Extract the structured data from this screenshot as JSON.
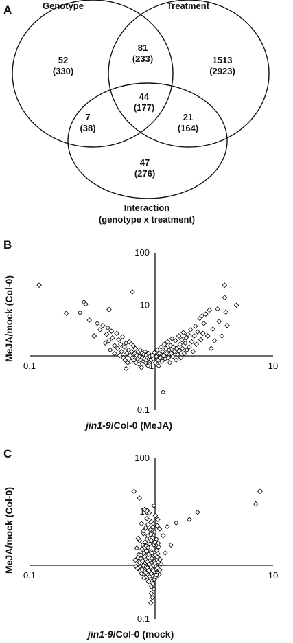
{
  "panel_a": {
    "label": "A",
    "sets": {
      "genotype": "Genotype",
      "treatment": "Treatment",
      "interaction_line1": "Interaction",
      "interaction_line2": "(genotype x treatment)"
    },
    "regions": {
      "genotype_only": {
        "count": "52",
        "paren": "(330)"
      },
      "genotype_treatment": {
        "count": "81",
        "paren": "(233)"
      },
      "treatment_only": {
        "count": "1513",
        "paren": "(2923)"
      },
      "center": {
        "count": "44",
        "paren": "(177)"
      },
      "genotype_interaction": {
        "count": "7",
        "paren": "(38)"
      },
      "treatment_interaction": {
        "count": "21",
        "paren": "(164)"
      },
      "interaction_only": {
        "count": "47",
        "paren": "(276)"
      }
    }
  },
  "panel_b": {
    "label": "B",
    "ylabel": "MeJA/mock (Col-0)",
    "xlabel_italic": "jin1-9",
    "xlabel_rest": "/Col-0 (MeJA)"
  },
  "panel_c": {
    "label": "C",
    "ylabel": "MeJA/mock (Col-0)",
    "xlabel_italic": "jin1-9",
    "xlabel_rest": "/Col-0 (mock)"
  },
  "chart_data": [
    {
      "type": "scatter",
      "xscale": "log",
      "yscale": "log",
      "xlim": [
        0.1,
        10
      ],
      "ylim": [
        0.1,
        100
      ],
      "axis_cross": [
        1,
        1
      ],
      "xticks": [
        "0.1",
        "1",
        "10"
      ],
      "yticks": [
        "100",
        "10",
        "0.1"
      ],
      "marker": "diamond-open",
      "points": [
        [
          0.12,
          24
        ],
        [
          0.2,
          7
        ],
        [
          0.26,
          7.2
        ],
        [
          0.28,
          11.5
        ],
        [
          0.29,
          10.5
        ],
        [
          0.31,
          5.2
        ],
        [
          0.34,
          2.6
        ],
        [
          0.36,
          4.5
        ],
        [
          0.38,
          3.4
        ],
        [
          0.4,
          4.1
        ],
        [
          0.42,
          1.9
        ],
        [
          0.43,
          2.8
        ],
        [
          0.44,
          3.7
        ],
        [
          0.45,
          2.1
        ],
        [
          0.45,
          8.3
        ],
        [
          0.46,
          1.4
        ],
        [
          0.47,
          3.2
        ],
        [
          0.48,
          2.4
        ],
        [
          0.5,
          1.7
        ],
        [
          0.5,
          1.2
        ],
        [
          0.52,
          2.9
        ],
        [
          0.53,
          1.5
        ],
        [
          0.54,
          2.2
        ],
        [
          0.55,
          1.1
        ],
        [
          0.56,
          1.8
        ],
        [
          0.57,
          1.3
        ],
        [
          0.58,
          2.5
        ],
        [
          0.59,
          1.0
        ],
        [
          0.6,
          1.6
        ],
        [
          0.61,
          0.9
        ],
        [
          0.62,
          1.9
        ],
        [
          0.63,
          1.2
        ],
        [
          0.64,
          0.8
        ],
        [
          0.65,
          1.4
        ],
        [
          0.66,
          2.0
        ],
        [
          0.67,
          1.1
        ],
        [
          0.68,
          0.85
        ],
        [
          0.69,
          1.3
        ],
        [
          0.7,
          18
        ],
        [
          0.7,
          1.0
        ],
        [
          0.71,
          1.7
        ],
        [
          0.72,
          0.9
        ],
        [
          0.73,
          1.2
        ],
        [
          0.74,
          1.5
        ],
        [
          0.75,
          0.8
        ],
        [
          0.76,
          1.1
        ],
        [
          0.77,
          0.95
        ],
        [
          0.78,
          1.3
        ],
        [
          0.79,
          0.75
        ],
        [
          0.8,
          1.05
        ],
        [
          0.81,
          1.4
        ],
        [
          0.82,
          0.9
        ],
        [
          0.83,
          0.65
        ],
        [
          0.84,
          1.2
        ],
        [
          0.85,
          1.0
        ],
        [
          0.86,
          0.85
        ],
        [
          0.87,
          1.15
        ],
        [
          0.88,
          0.95
        ],
        [
          0.89,
          1.3
        ],
        [
          0.9,
          0.8
        ],
        [
          0.91,
          1.1
        ],
        [
          0.92,
          0.9
        ],
        [
          0.93,
          1.0
        ],
        [
          0.94,
          0.7
        ],
        [
          0.95,
          1.2
        ],
        [
          0.96,
          0.95
        ],
        [
          0.97,
          1.05
        ],
        [
          0.98,
          0.85
        ],
        [
          1.0,
          0.9
        ],
        [
          1.02,
          1.1
        ],
        [
          1.04,
          0.95
        ],
        [
          1.06,
          1.25
        ],
        [
          1.08,
          0.8
        ],
        [
          1.1,
          1.05
        ],
        [
          1.12,
          1.4
        ],
        [
          1.14,
          0.9
        ],
        [
          1.16,
          1.2
        ],
        [
          1.18,
          1.0
        ],
        [
          1.2,
          1.6
        ],
        [
          1.22,
          0.85
        ],
        [
          1.24,
          1.3
        ],
        [
          1.26,
          1.1
        ],
        [
          1.28,
          1.8
        ],
        [
          1.3,
          0.95
        ],
        [
          1.32,
          1.5
        ],
        [
          1.34,
          1.2
        ],
        [
          1.36,
          2.0
        ],
        [
          1.38,
          1.0
        ],
        [
          1.4,
          1.4
        ],
        [
          1.42,
          0.8
        ],
        [
          1.44,
          1.7
        ],
        [
          1.46,
          1.2
        ],
        [
          1.48,
          2.3
        ],
        [
          1.5,
          1.05
        ],
        [
          1.52,
          1.6
        ],
        [
          1.55,
          1.3
        ],
        [
          1.58,
          2.1
        ],
        [
          1.6,
          0.9
        ],
        [
          1.62,
          1.5
        ],
        [
          1.65,
          1.15
        ],
        [
          1.68,
          2.6
        ],
        [
          1.7,
          1.35
        ],
        [
          1.72,
          1.8
        ],
        [
          1.75,
          1.0
        ],
        [
          1.78,
          2.2
        ],
        [
          1.8,
          1.5
        ],
        [
          1.83,
          3.0
        ],
        [
          1.86,
          1.2
        ],
        [
          1.9,
          1.9
        ],
        [
          1.93,
          2.4
        ],
        [
          1.96,
          1.4
        ],
        [
          2.0,
          2.8
        ],
        [
          2.05,
          1.6
        ],
        [
          2.1,
          3.4
        ],
        [
          2.15,
          2.0
        ],
        [
          2.2,
          1.3
        ],
        [
          2.25,
          2.6
        ],
        [
          2.3,
          4.0
        ],
        [
          2.35,
          1.8
        ],
        [
          2.4,
          3.1
        ],
        [
          2.5,
          5.6
        ],
        [
          2.55,
          2.2
        ],
        [
          2.6,
          6.2
        ],
        [
          2.65,
          2.9
        ],
        [
          2.7,
          4.5
        ],
        [
          2.8,
          6.8
        ],
        [
          2.9,
          2.6
        ],
        [
          3.0,
          8.1
        ],
        [
          3.1,
          1.5
        ],
        [
          3.2,
          3.5
        ],
        [
          3.3,
          2.1
        ],
        [
          3.5,
          8.5
        ],
        [
          3.6,
          4.9
        ],
        [
          3.8,
          2.6
        ],
        [
          4.0,
          24
        ],
        [
          4.0,
          14
        ],
        [
          4.1,
          7.4
        ],
        [
          4.2,
          4.1
        ],
        [
          5.0,
          10
        ],
        [
          1.25,
          0.22
        ],
        [
          0.62,
          0.62
        ],
        [
          1.15,
          0.7
        ]
      ]
    },
    {
      "type": "scatter",
      "xscale": "log",
      "yscale": "log",
      "xlim": [
        0.1,
        10
      ],
      "ylim": [
        0.1,
        100
      ],
      "axis_cross": [
        1,
        1
      ],
      "xticks": [
        "0.1",
        "1",
        "10"
      ],
      "yticks": [
        "100",
        "10",
        "0.1"
      ],
      "marker": "diamond-open",
      "points": [
        [
          0.72,
          24
        ],
        [
          0.8,
          18
        ],
        [
          1.05,
          13
        ],
        [
          0.88,
          11
        ],
        [
          0.96,
          9.5
        ],
        [
          1.08,
          8.5
        ],
        [
          0.92,
          7.5
        ],
        [
          1.0,
          6.5
        ],
        [
          0.83,
          6
        ],
        [
          1.12,
          5.5
        ],
        [
          0.9,
          5
        ],
        [
          0.98,
          4.6
        ],
        [
          1.06,
          4.2
        ],
        [
          0.86,
          3.9
        ],
        [
          0.94,
          3.6
        ],
        [
          1.02,
          3.3
        ],
        [
          1.1,
          3.1
        ],
        [
          0.8,
          2.9
        ],
        [
          0.89,
          2.7
        ],
        [
          0.97,
          2.5
        ],
        [
          1.05,
          2.4
        ],
        [
          1.15,
          2.2
        ],
        [
          0.76,
          2.1
        ],
        [
          0.84,
          2.0
        ],
        [
          0.92,
          1.9
        ],
        [
          1.0,
          1.8
        ],
        [
          1.08,
          1.75
        ],
        [
          0.87,
          1.65
        ],
        [
          0.95,
          1.6
        ],
        [
          1.03,
          1.5
        ],
        [
          1.12,
          1.45
        ],
        [
          0.78,
          1.4
        ],
        [
          0.82,
          1.35
        ],
        [
          0.9,
          1.3
        ],
        [
          0.98,
          1.25
        ],
        [
          1.06,
          1.2
        ],
        [
          1.14,
          1.15
        ],
        [
          0.8,
          1.12
        ],
        [
          0.88,
          1.08
        ],
        [
          0.96,
          1.05
        ],
        [
          1.04,
          1.0
        ],
        [
          1.1,
          0.97
        ],
        [
          0.75,
          0.95
        ],
        [
          0.85,
          0.92
        ],
        [
          0.93,
          0.9
        ],
        [
          1.01,
          0.87
        ],
        [
          1.09,
          0.84
        ],
        [
          0.81,
          0.81
        ],
        [
          0.89,
          0.79
        ],
        [
          0.97,
          0.77
        ],
        [
          1.05,
          0.74
        ],
        [
          1.13,
          0.72
        ],
        [
          0.86,
          0.69
        ],
        [
          0.94,
          0.67
        ],
        [
          1.02,
          0.64
        ],
        [
          0.9,
          0.6
        ],
        [
          0.98,
          0.57
        ],
        [
          1.06,
          0.54
        ],
        [
          0.95,
          0.5
        ],
        [
          1.03,
          0.46
        ],
        [
          1.0,
          0.4
        ],
        [
          1.05,
          0.36
        ],
        [
          1.0,
          0.3
        ],
        [
          1.02,
          0.25
        ],
        [
          0.99,
          0.2
        ],
        [
          0.91,
          2.3
        ],
        [
          1.11,
          1.9
        ],
        [
          0.79,
          1.6
        ],
        [
          1.18,
          1.3
        ],
        [
          0.74,
          1.25
        ],
        [
          1.2,
          1.05
        ],
        [
          0.77,
          0.88
        ],
        [
          1.17,
          0.82
        ],
        [
          0.83,
          0.7
        ],
        [
          1.16,
          0.68
        ],
        [
          0.87,
          0.58
        ],
        [
          1.09,
          0.6
        ],
        [
          0.92,
          3.1
        ],
        [
          1.0,
          2.9
        ],
        [
          0.85,
          2.4
        ],
        [
          1.07,
          2.7
        ],
        [
          0.94,
          2.15
        ],
        [
          1.13,
          1.65
        ],
        [
          0.82,
          1.55
        ],
        [
          1.01,
          1.35
        ],
        [
          0.93,
          1.18
        ],
        [
          1.07,
          1.1
        ],
        [
          0.86,
          1.0
        ],
        [
          0.99,
          0.93
        ],
        [
          1.12,
          0.9
        ],
        [
          0.84,
          0.83
        ],
        [
          0.95,
          0.8
        ],
        [
          1.04,
          0.79
        ],
        [
          0.9,
          0.73
        ],
        [
          1.0,
          0.7
        ],
        [
          1.1,
          0.66
        ],
        [
          0.97,
          0.62
        ],
        [
          1.08,
          1.55
        ],
        [
          0.88,
          1.45
        ],
        [
          1.01,
          1.7
        ],
        [
          0.91,
          1.85
        ],
        [
          1.14,
          2.6
        ],
        [
          0.78,
          3.2
        ],
        [
          1.0,
          4.0
        ],
        [
          1.17,
          4.8
        ],
        [
          0.86,
          4.4
        ],
        [
          1.13,
          7.2
        ],
        [
          0.94,
          5.8
        ],
        [
          1.03,
          5.2
        ],
        [
          0.99,
          3.8
        ],
        [
          2.4,
          9.8
        ],
        [
          2.05,
          7.2
        ],
        [
          1.6,
          6.2
        ],
        [
          1.35,
          5.3
        ],
        [
          1.25,
          3.6
        ],
        [
          1.45,
          2.4
        ],
        [
          1.3,
          1.7
        ],
        [
          7.2,
          14
        ],
        [
          7.8,
          24
        ]
      ]
    }
  ]
}
